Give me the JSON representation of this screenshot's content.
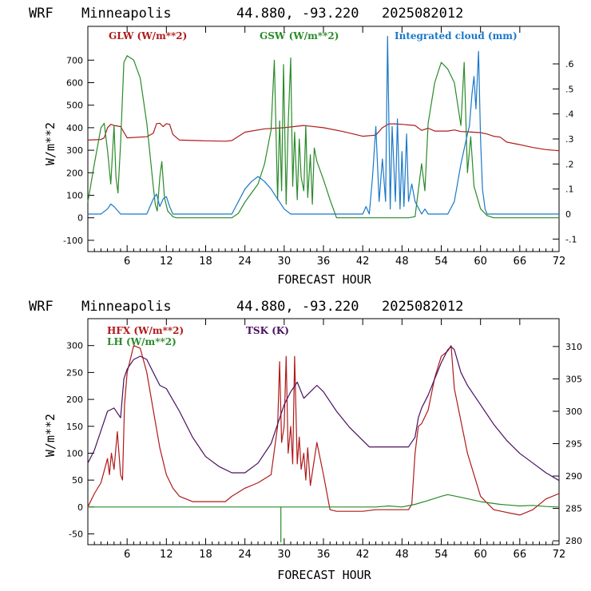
{
  "chart_data": [
    {
      "type": "line",
      "title": {
        "model": "WRF",
        "location": "Minneapolis",
        "coords": "44.880, -93.220",
        "init": "2025082012"
      },
      "xlabel": "FORECAST HOUR",
      "ylabel": "W/m**2",
      "xlim": [
        0,
        72
      ],
      "ylim": [
        -150,
        850
      ],
      "x_ticks": [
        6,
        12,
        18,
        24,
        30,
        36,
        42,
        48,
        54,
        60,
        66,
        72
      ],
      "y_ticks": [
        -100,
        0,
        100,
        200,
        300,
        400,
        500,
        600,
        700
      ],
      "y2lim": [
        -0.15,
        0.75
      ],
      "y2_ticks": [
        {
          "v": -0.1,
          "label": "-.1"
        },
        {
          "v": 0,
          "label": "0"
        },
        {
          "v": 0.1,
          "label": ".1"
        },
        {
          "v": 0.2,
          "label": ".2"
        },
        {
          "v": 0.3,
          "label": ".3"
        },
        {
          "v": 0.4,
          "label": ".4"
        },
        {
          "v": 0.5,
          "label": ".5"
        },
        {
          "v": 0.6,
          "label": ".6"
        }
      ],
      "grid": false,
      "series": [
        {
          "name": "GLW (W/m**2)",
          "color": "#b01a1a",
          "axis": "left",
          "x": [
            0,
            2,
            2.5,
            3,
            3.5,
            4,
            5,
            6,
            9,
            10,
            10.5,
            11,
            11.5,
            12,
            12.5,
            13,
            14,
            18,
            21,
            22,
            24,
            27,
            30,
            33,
            36,
            39,
            42,
            44,
            45,
            46,
            47,
            48,
            50,
            51,
            52,
            53,
            54,
            55,
            56,
            57,
            58,
            60,
            61,
            62,
            63,
            64,
            66,
            68,
            70,
            72
          ],
          "y": [
            345,
            348,
            355,
            400,
            415,
            410,
            405,
            355,
            360,
            375,
            418,
            420,
            405,
            418,
            415,
            370,
            345,
            342,
            340,
            343,
            380,
            395,
            400,
            410,
            400,
            383,
            362,
            367,
            400,
            417,
            417,
            415,
            410,
            388,
            398,
            385,
            385,
            385,
            390,
            383,
            382,
            378,
            372,
            362,
            358,
            336,
            325,
            312,
            303,
            298
          ]
        },
        {
          "name": "GSW (W/m**2)",
          "color": "#2a8a2a",
          "axis": "left",
          "x": [
            0,
            1,
            2,
            2.5,
            3,
            3.5,
            4,
            4.3,
            4.6,
            5,
            5.5,
            6,
            7,
            8,
            9,
            10,
            10.3,
            10.6,
            11,
            11.3,
            11.7,
            12.2,
            13,
            13.5,
            14,
            22,
            23,
            24,
            26,
            27,
            28,
            28.5,
            29,
            29.3,
            29.6,
            29.9,
            30.3,
            30.6,
            31,
            31.3,
            31.6,
            32,
            32.3,
            32.6,
            33,
            33.3,
            33.6,
            34,
            34.3,
            34.6,
            35,
            36,
            37,
            38,
            48,
            49,
            50,
            51,
            51.5,
            52,
            53,
            54,
            55,
            56,
            57,
            57.5,
            58,
            58.5,
            59,
            59.5,
            60,
            61,
            62,
            72
          ],
          "y": [
            70,
            240,
            400,
            420,
            300,
            150,
            410,
            180,
            110,
            330,
            690,
            720,
            700,
            620,
            420,
            140,
            60,
            30,
            180,
            250,
            90,
            30,
            5,
            0,
            0,
            0,
            20,
            70,
            150,
            240,
            390,
            700,
            80,
            430,
            120,
            680,
            60,
            410,
            710,
            140,
            380,
            80,
            350,
            180,
            120,
            410,
            90,
            280,
            60,
            310,
            250,
            170,
            80,
            0,
            0,
            0,
            5,
            240,
            120,
            420,
            600,
            690,
            660,
            600,
            410,
            690,
            200,
            360,
            140,
            90,
            40,
            10,
            0,
            0
          ]
        },
        {
          "name": "Integrated cloud (mm)",
          "color": "#1a78c8",
          "axis": "right",
          "x": [
            0,
            2,
            3,
            3.5,
            4,
            5,
            9,
            10,
            10.5,
            11,
            11.5,
            12,
            12.5,
            13,
            14,
            22,
            23,
            24,
            25,
            26,
            27,
            28,
            29,
            30,
            31,
            42,
            42.5,
            43,
            43.5,
            44,
            44.5,
            45,
            45.5,
            45.8,
            46.2,
            46.5,
            47,
            47.3,
            47.7,
            48,
            48.3,
            48.7,
            49,
            49.5,
            50,
            51,
            51.5,
            52,
            53,
            55,
            56,
            57,
            58,
            58.3,
            58.7,
            59,
            59.3,
            59.7,
            60,
            60.3,
            60.7,
            61,
            62,
            72
          ],
          "y": [
            0,
            0,
            0.02,
            0.04,
            0.03,
            0,
            0,
            0.06,
            0.08,
            0.03,
            0.06,
            0.07,
            0.03,
            0,
            0,
            0,
            0.05,
            0.1,
            0.13,
            0.15,
            0.13,
            0.1,
            0.06,
            0.02,
            0,
            0,
            0.03,
            0,
            0.15,
            0.35,
            0.05,
            0.22,
            0.05,
            0.71,
            0.02,
            0.35,
            0.05,
            0.38,
            0.02,
            0.25,
            0.03,
            0.32,
            0.05,
            0.12,
            0.05,
            0,
            0.02,
            0,
            0,
            0,
            0.05,
            0.2,
            0.32,
            0.35,
            0.48,
            0.55,
            0.42,
            0.65,
            0.3,
            0.1,
            0.02,
            0,
            0,
            0
          ]
        }
      ]
    },
    {
      "type": "line",
      "title": {
        "model": "WRF",
        "location": "Minneapolis",
        "coords": "44.880, -93.220",
        "init": "2025082012"
      },
      "xlabel": "FORECAST HOUR",
      "ylabel": "W/m**2",
      "xlim": [
        0,
        72
      ],
      "ylim": [
        -70,
        350
      ],
      "x_ticks": [
        6,
        12,
        18,
        24,
        30,
        36,
        42,
        48,
        54,
        60,
        66,
        72
      ],
      "y_ticks": [
        -50,
        0,
        50,
        100,
        150,
        200,
        250,
        300
      ],
      "y2lim": [
        279.4,
        314.3
      ],
      "y2_ticks": [
        {
          "v": 280,
          "label": "280"
        },
        {
          "v": 285,
          "label": "285"
        },
        {
          "v": 290,
          "label": "290"
        },
        {
          "v": 295,
          "label": "295"
        },
        {
          "v": 300,
          "label": "300"
        },
        {
          "v": 305,
          "label": "305"
        },
        {
          "v": 310,
          "label": "310"
        }
      ],
      "grid": false,
      "series": [
        {
          "name": "HFX (W/m**2)",
          "color": "#b01a1a",
          "axis": "left",
          "x": [
            0,
            1,
            2,
            3,
            3.3,
            3.6,
            4,
            4.5,
            5,
            5.3,
            5.6,
            6,
            7,
            8,
            9,
            10,
            11,
            12,
            13,
            14,
            16,
            18,
            21,
            22,
            24,
            26,
            28,
            28.5,
            29,
            29.3,
            29.6,
            30,
            30.3,
            30.6,
            31,
            31.3,
            31.6,
            32,
            32.3,
            32.6,
            33,
            33.3,
            33.6,
            34,
            35,
            36,
            37,
            38,
            40,
            42,
            44,
            46,
            48,
            49,
            49.5,
            50,
            50.5,
            51,
            52,
            53,
            54,
            55,
            55.5,
            56,
            57,
            58,
            59,
            60,
            62,
            64,
            66,
            68,
            70,
            72
          ],
          "y": [
            0,
            25,
            45,
            90,
            60,
            100,
            70,
            140,
            60,
            50,
            190,
            250,
            300,
            295,
            250,
            180,
            110,
            60,
            35,
            20,
            10,
            10,
            10,
            20,
            35,
            45,
            60,
            105,
            150,
            270,
            120,
            150,
            280,
            100,
            150,
            80,
            280,
            80,
            130,
            70,
            100,
            50,
            110,
            40,
            120,
            60,
            -5,
            -8,
            -8,
            -8,
            -5,
            -5,
            -5,
            -5,
            5,
            100,
            150,
            155,
            180,
            240,
            280,
            290,
            300,
            220,
            160,
            100,
            60,
            20,
            -5,
            -10,
            -15,
            -5,
            15,
            25
          ]
        },
        {
          "name": "LH (W/m**2)",
          "color": "#2a8a2a",
          "axis": "left",
          "x": [
            0,
            29.5,
            29.5,
            29.5,
            44,
            46,
            48,
            50,
            52,
            54,
            55,
            57,
            60,
            63,
            66,
            68,
            70,
            72
          ],
          "y": [
            0,
            0,
            -65,
            0,
            0,
            2,
            0,
            5,
            12,
            20,
            23,
            18,
            10,
            5,
            2,
            3,
            1,
            0
          ]
        },
        {
          "name": "TSK (K)",
          "color": "#4a1060",
          "axis": "right",
          "x": [
            0,
            1,
            2,
            3,
            4,
            5,
            5.5,
            6,
            7,
            8,
            9,
            10,
            11,
            12,
            14,
            16,
            18,
            20,
            22,
            24,
            26,
            28,
            29,
            30,
            31,
            32,
            33,
            34,
            35,
            36,
            38,
            40,
            42,
            43,
            44,
            46,
            48,
            49,
            50,
            50.5,
            51,
            52,
            53,
            54,
            55,
            55.5,
            56,
            57,
            58,
            59,
            60,
            62,
            64,
            66,
            68,
            70,
            72
          ],
          "y": [
            292,
            294,
            297,
            300,
            300.5,
            299,
            305,
            306.5,
            308,
            308.5,
            308,
            306,
            304,
            303.5,
            300,
            296,
            293,
            291.5,
            290.5,
            290.5,
            292,
            295,
            298,
            301,
            303,
            304.5,
            302,
            303,
            304,
            303,
            300,
            297.5,
            295.5,
            294.5,
            294.5,
            294.5,
            294.5,
            294.5,
            296,
            299,
            300.5,
            302.5,
            305,
            307.5,
            309.5,
            310,
            309.5,
            306,
            304,
            302.5,
            301,
            298,
            295.5,
            293.5,
            292,
            290.5,
            289.3
          ]
        }
      ]
    }
  ]
}
